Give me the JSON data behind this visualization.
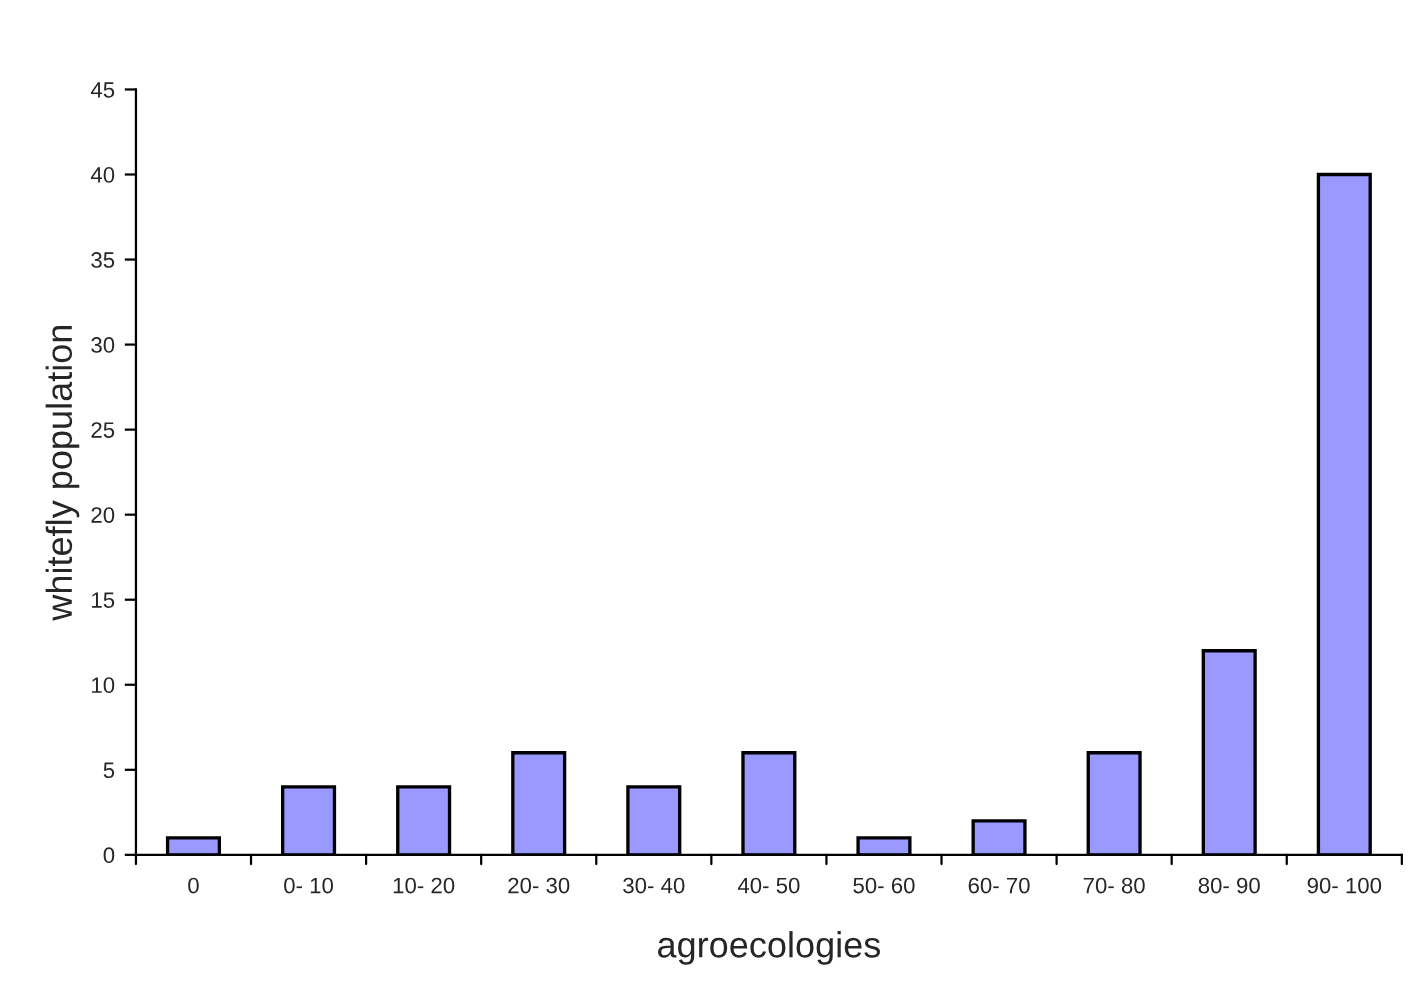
{
  "chart_data": {
    "type": "bar",
    "xlabel": "agroecologies",
    "ylabel": "whitefly population",
    "categories": [
      "0",
      "0- 10",
      "10- 20",
      "20- 30",
      "30- 40",
      "40- 50",
      "50- 60",
      "60- 70",
      "70- 80",
      "80- 90",
      "90- 100"
    ],
    "values": [
      1,
      4,
      4,
      6,
      4,
      6,
      1,
      2,
      6,
      12,
      40
    ],
    "color": "#9999ff",
    "ylim": [
      0,
      45
    ],
    "yticks": [
      0,
      5,
      10,
      15,
      20,
      25,
      30,
      35,
      40,
      45
    ],
    "grid": false
  }
}
